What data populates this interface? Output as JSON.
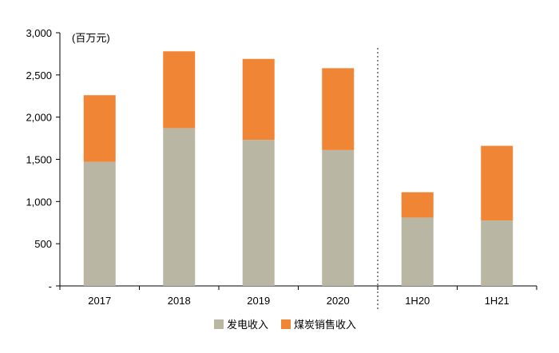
{
  "chart_data": {
    "type": "bar",
    "stacked": true,
    "unit_label": "(百万元)",
    "categories": [
      "2017",
      "2018",
      "2019",
      "2020",
      "1H20",
      "1H21"
    ],
    "series": [
      {
        "name": "发电收入",
        "color": "#b9b7a3",
        "values": [
          1470,
          1870,
          1730,
          1610,
          810,
          775
        ]
      },
      {
        "name": "煤炭销售收入",
        "color": "#f08536",
        "values": [
          790,
          910,
          960,
          970,
          300,
          885
        ]
      }
    ],
    "ylim": [
      0,
      3000
    ],
    "yticks": [
      0,
      500,
      1000,
      1500,
      2000,
      2500,
      3000
    ],
    "ytick_labels": [
      "-",
      "500",
      "1,000",
      "1,500",
      "2,000",
      "2,500",
      "3,000"
    ],
    "separator": "dotted line between 2020 and 1H20",
    "legend_position": "bottom-center"
  }
}
